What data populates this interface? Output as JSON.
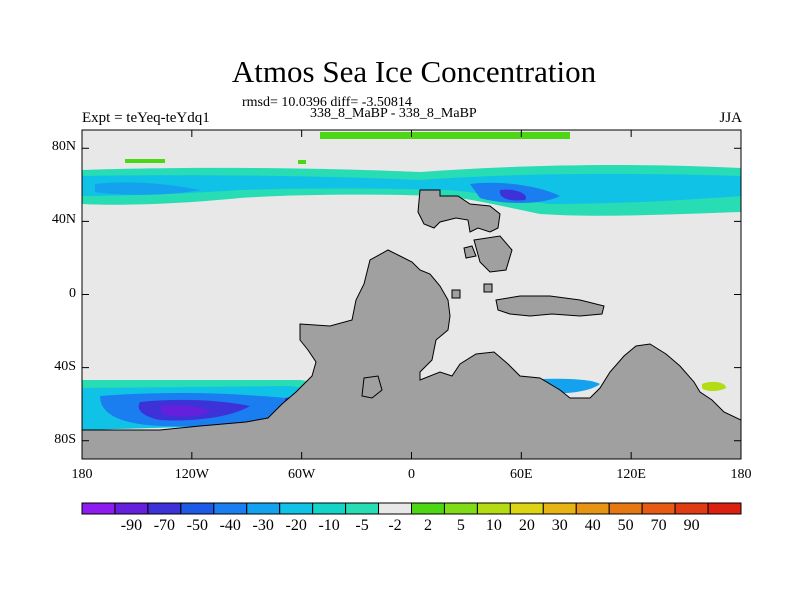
{
  "header": {
    "title": "Atmos Sea Ice Concentration",
    "stats": "rmsd= 10.0396 diff= -3.50814",
    "subtitle": "338_8_MaBP - 338_8_MaBP",
    "experiment": "Expt = teYeq-teYdq1",
    "season": "JJA"
  },
  "chart_data": {
    "type": "heatmap",
    "lat_range": [
      -90,
      90
    ],
    "lon_range": [
      -180,
      180
    ],
    "y_ticks": [
      {
        "value": 80,
        "label": "80N"
      },
      {
        "value": 40,
        "label": "40N"
      },
      {
        "value": 0,
        "label": "0"
      },
      {
        "value": -40,
        "label": "40S"
      },
      {
        "value": -80,
        "label": "80S"
      }
    ],
    "x_ticks": [
      {
        "value": -180,
        "label": "180"
      },
      {
        "value": -120,
        "label": "120W"
      },
      {
        "value": -60,
        "label": "60W"
      },
      {
        "value": 0,
        "label": "0"
      },
      {
        "value": 60,
        "label": "60E"
      },
      {
        "value": 120,
        "label": "120E"
      },
      {
        "value": 180,
        "label": "180"
      }
    ],
    "colorbar": {
      "colors": [
        "#8c1cf0",
        "#6420dc",
        "#3c32d8",
        "#1e5ae6",
        "#1a7ef0",
        "#14a2ee",
        "#10c2e6",
        "#14d4c8",
        "#28dcb4",
        "#e8e8e8",
        "#4cd614",
        "#80dc18",
        "#b4dc14",
        "#dcd414",
        "#e6b414",
        "#e69414",
        "#e67814",
        "#e65a14",
        "#e03c14",
        "#dc2010"
      ],
      "labels": [
        "-90",
        "-70",
        "-50",
        "-40",
        "-30",
        "-20",
        "-10",
        "-5",
        "-2",
        "2",
        "5",
        "10",
        "20",
        "30",
        "40",
        "50",
        "70",
        "90"
      ]
    },
    "colors": {
      "background_field": "#e8e8e8",
      "land": "#a0a0a0"
    }
  }
}
